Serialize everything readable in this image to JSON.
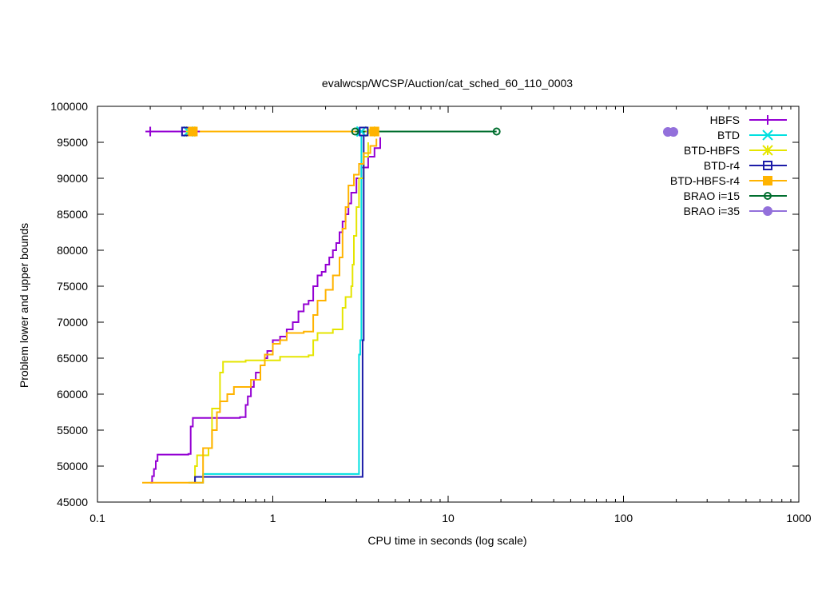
{
  "chart_data": {
    "type": "line",
    "title": "evalwcsp/WCSP/Auction/cat_sched_60_110_0003",
    "xlabel": "CPU time in seconds (log scale)",
    "ylabel": "Problem lower and upper bounds",
    "xscale": "log",
    "xlim": [
      0.1,
      1000
    ],
    "ylim": [
      45000,
      100000
    ],
    "xticks": [
      0.1,
      1,
      10,
      100,
      1000
    ],
    "xtick_labels": [
      "0.1",
      "1",
      "10",
      "100",
      "1000"
    ],
    "yticks": [
      45000,
      50000,
      55000,
      60000,
      65000,
      70000,
      75000,
      80000,
      85000,
      90000,
      95000,
      100000
    ],
    "ytick_labels": [
      "45000",
      "50000",
      "55000",
      "60000",
      "65000",
      "70000",
      "75000",
      "80000",
      "85000",
      "90000",
      "95000",
      "100000"
    ],
    "legend_position": "top-right",
    "grid": false,
    "series": [
      {
        "name": "HBFS",
        "color": "#9400d3",
        "marker": "plus",
        "upper": [
          [
            0.2,
            96500
          ],
          [
            0.36,
            96500
          ]
        ],
        "lower": [
          [
            0.2,
            47700
          ],
          [
            0.205,
            48600
          ],
          [
            0.21,
            49600
          ],
          [
            0.215,
            50700
          ],
          [
            0.22,
            51600
          ],
          [
            0.3,
            51600
          ],
          [
            0.33,
            51700
          ],
          [
            0.34,
            55500
          ],
          [
            0.35,
            56700
          ],
          [
            0.55,
            56700
          ],
          [
            0.65,
            56800
          ],
          [
            0.7,
            58500
          ],
          [
            0.72,
            59700
          ],
          [
            0.75,
            61000
          ],
          [
            0.78,
            62000
          ],
          [
            0.8,
            63000
          ],
          [
            0.85,
            64000
          ],
          [
            0.9,
            65000
          ],
          [
            0.93,
            66000
          ],
          [
            1.0,
            67500
          ],
          [
            1.1,
            68000
          ],
          [
            1.2,
            69000
          ],
          [
            1.3,
            70000
          ],
          [
            1.4,
            71500
          ],
          [
            1.5,
            72500
          ],
          [
            1.6,
            73000
          ],
          [
            1.7,
            75000
          ],
          [
            1.8,
            76500
          ],
          [
            1.9,
            77000
          ],
          [
            2.0,
            78000
          ],
          [
            2.1,
            79000
          ],
          [
            2.2,
            80000
          ],
          [
            2.3,
            81000
          ],
          [
            2.4,
            82500
          ],
          [
            2.5,
            84000
          ],
          [
            2.6,
            85000
          ],
          [
            2.7,
            86500
          ],
          [
            2.8,
            88000
          ],
          [
            3.0,
            90000
          ],
          [
            3.2,
            91500
          ],
          [
            3.5,
            93000
          ],
          [
            3.8,
            94200
          ],
          [
            4.1,
            95700
          ]
        ]
      },
      {
        "name": "BTD",
        "color": "#00e0e0",
        "marker": "cross",
        "upper": [
          [
            0.33,
            96500
          ],
          [
            3.2,
            96500
          ]
        ],
        "lower": [
          [
            0.33,
            47700
          ],
          [
            0.4,
            47700
          ],
          [
            0.4,
            48900
          ],
          [
            3.05,
            48900
          ],
          [
            3.1,
            65500
          ],
          [
            3.15,
            67500
          ],
          [
            3.2,
            96000
          ]
        ]
      },
      {
        "name": "BTD-HBFS",
        "color": "#e5e500",
        "marker": "star",
        "upper": [
          [
            0.34,
            96500
          ],
          [
            3.6,
            96500
          ]
        ],
        "lower": [
          [
            0.34,
            47700
          ],
          [
            0.36,
            50000
          ],
          [
            0.37,
            51500
          ],
          [
            0.43,
            52500
          ],
          [
            0.45,
            58000
          ],
          [
            0.5,
            63000
          ],
          [
            0.52,
            64500
          ],
          [
            0.7,
            64700
          ],
          [
            1.1,
            65200
          ],
          [
            1.6,
            65400
          ],
          [
            1.7,
            67500
          ],
          [
            1.8,
            68500
          ],
          [
            2.2,
            69000
          ],
          [
            2.5,
            72000
          ],
          [
            2.6,
            73500
          ],
          [
            2.8,
            75000
          ],
          [
            2.85,
            78000
          ],
          [
            2.9,
            82000
          ],
          [
            3.0,
            86000
          ],
          [
            3.1,
            90000
          ],
          [
            3.3,
            93000
          ],
          [
            3.5,
            95000
          ]
        ]
      },
      {
        "name": "BTD-r4",
        "color": "#1c1ca8",
        "marker": "square",
        "upper": [
          [
            0.32,
            96500
          ],
          [
            3.3,
            96500
          ]
        ],
        "lower": [
          [
            0.36,
            47700
          ],
          [
            0.36,
            48500
          ],
          [
            3.2,
            48500
          ],
          [
            3.25,
            67500
          ],
          [
            3.3,
            96500
          ]
        ]
      },
      {
        "name": "BTD-HBFS-r4",
        "color": "#ffb300",
        "marker": "filled-square",
        "upper": [
          [
            0.35,
            96500
          ],
          [
            3.8,
            96500
          ]
        ],
        "lower": [
          [
            0.18,
            47700
          ],
          [
            0.36,
            47700
          ],
          [
            0.4,
            52500
          ],
          [
            0.45,
            55000
          ],
          [
            0.48,
            57500
          ],
          [
            0.5,
            59000
          ],
          [
            0.55,
            60000
          ],
          [
            0.6,
            61000
          ],
          [
            0.75,
            62000
          ],
          [
            0.85,
            64000
          ],
          [
            0.9,
            65500
          ],
          [
            1.0,
            67000
          ],
          [
            1.1,
            67500
          ],
          [
            1.2,
            68500
          ],
          [
            1.5,
            68700
          ],
          [
            1.7,
            71000
          ],
          [
            1.8,
            73000
          ],
          [
            2.0,
            74500
          ],
          [
            2.2,
            76500
          ],
          [
            2.4,
            79000
          ],
          [
            2.5,
            83000
          ],
          [
            2.6,
            86000
          ],
          [
            2.7,
            89000
          ],
          [
            2.9,
            90500
          ],
          [
            3.1,
            92000
          ],
          [
            3.3,
            93500
          ],
          [
            3.6,
            94500
          ],
          [
            3.9,
            95500
          ]
        ]
      },
      {
        "name": "BRAO i=15",
        "color": "#006e2e",
        "marker": "circle",
        "upper": [
          [
            2.95,
            96500
          ],
          [
            18.9,
            96500
          ]
        ],
        "lower": []
      },
      {
        "name": "BRAO i=35",
        "color": "#9370db",
        "marker": "filled-circle",
        "upper": [],
        "lower": []
      }
    ]
  }
}
